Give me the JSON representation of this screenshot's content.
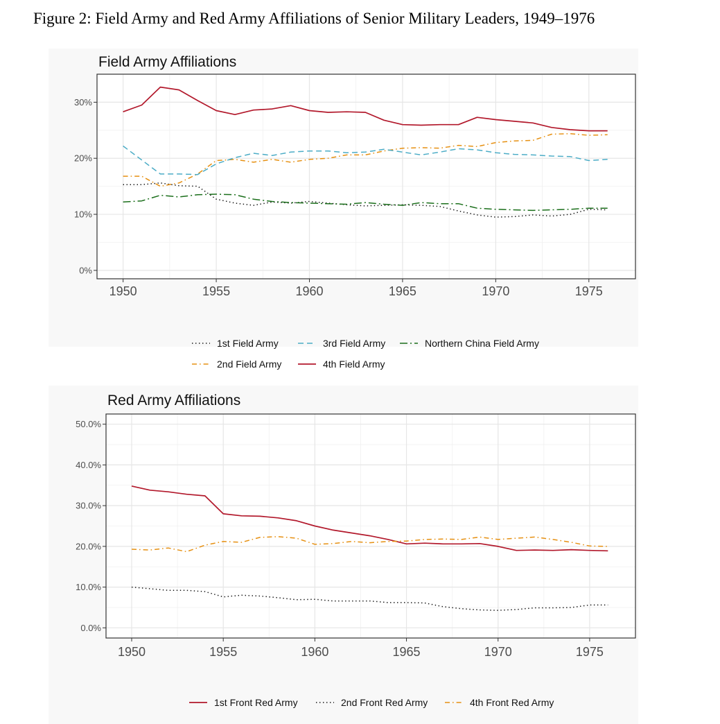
{
  "figure_title": "Figure 2: Field Army and Red Army Affiliations of Senior Military Leaders, 1949–1976",
  "colors": {
    "red": "#b2182b",
    "blue": "#4bacc6",
    "orange": "#e69012",
    "green": "#1a6e1a",
    "black": "#111111"
  },
  "chart_data": [
    {
      "type": "line",
      "title": "Field Army Affiliations",
      "xlabel": "",
      "ylabel": "",
      "x": [
        1950,
        1951,
        1952,
        1953,
        1954,
        1955,
        1956,
        1957,
        1958,
        1959,
        1960,
        1961,
        1962,
        1963,
        1964,
        1965,
        1966,
        1967,
        1968,
        1969,
        1970,
        1971,
        1972,
        1973,
        1974,
        1975,
        1976
      ],
      "xlim": [
        1948.6,
        1977.5
      ],
      "ylim": [
        -1.5,
        35
      ],
      "x_ticks": [
        1950,
        1955,
        1960,
        1965,
        1970,
        1975
      ],
      "x_tick_labels": [
        "1950",
        "1955",
        "1960",
        "1965",
        "1970",
        "1975"
      ],
      "y_ticks": [
        0,
        10,
        20,
        30
      ],
      "y_tick_labels": [
        "0%",
        "10%",
        "20%",
        "30%"
      ],
      "grid": true,
      "legend_position": "bottom",
      "series": [
        {
          "name": "1st Field Army",
          "style": "dotted",
          "color": "#111111",
          "values": [
            15.3,
            15.3,
            15.6,
            15.1,
            15.0,
            12.7,
            12.0,
            11.6,
            12.2,
            12.0,
            12.3,
            12.0,
            11.7,
            11.5,
            11.6,
            11.7,
            11.6,
            11.4,
            10.6,
            9.9,
            9.5,
            9.6,
            9.9,
            9.7,
            10.0,
            10.9,
            10.8
          ]
        },
        {
          "name": "2nd Field Army",
          "style": "dashdot",
          "color": "#e69012",
          "values": [
            16.8,
            16.8,
            15.0,
            15.6,
            17.2,
            19.6,
            19.8,
            19.3,
            19.8,
            19.3,
            19.8,
            20.0,
            20.6,
            20.6,
            21.3,
            21.8,
            21.9,
            21.8,
            22.3,
            22.1,
            22.8,
            23.1,
            23.2,
            24.3,
            24.4,
            24.1,
            24.2
          ]
        },
        {
          "name": "3rd Field Army",
          "style": "dashed",
          "color": "#4bacc6",
          "values": [
            22.2,
            19.7,
            17.2,
            17.2,
            17.1,
            19.0,
            20.1,
            20.9,
            20.5,
            21.1,
            21.3,
            21.3,
            21.0,
            21.1,
            21.6,
            21.1,
            20.6,
            21.1,
            21.7,
            21.5,
            21.0,
            20.7,
            20.6,
            20.4,
            20.3,
            19.6,
            19.8
          ]
        },
        {
          "name": "4th Field Army",
          "style": "solid",
          "color": "#b2182b",
          "values": [
            28.3,
            29.5,
            32.7,
            32.2,
            30.3,
            28.5,
            27.8,
            28.6,
            28.8,
            29.4,
            28.5,
            28.2,
            28.3,
            28.2,
            26.8,
            26.0,
            25.9,
            26.0,
            26.0,
            27.3,
            26.9,
            26.6,
            26.3,
            25.5,
            25.1,
            24.9,
            24.9
          ]
        },
        {
          "name": "Northern China Field Army",
          "style": "longdashdot",
          "color": "#1a6e1a",
          "values": [
            12.2,
            12.4,
            13.4,
            13.1,
            13.5,
            13.6,
            13.5,
            12.7,
            12.3,
            12.1,
            12.0,
            11.9,
            11.8,
            12.1,
            11.8,
            11.6,
            12.1,
            11.9,
            11.9,
            11.1,
            10.9,
            10.8,
            10.7,
            10.8,
            10.9,
            11.1,
            11.1
          ]
        }
      ],
      "legend_rows": [
        [
          "1st Field Army",
          "3rd Field Army",
          "Northern China Field Army"
        ],
        [
          "2nd Field Army",
          "4th Field Army"
        ]
      ]
    },
    {
      "type": "line",
      "title": "Red Army Affiliations",
      "xlabel": "",
      "ylabel": "",
      "x": [
        1950,
        1951,
        1952,
        1953,
        1954,
        1955,
        1956,
        1957,
        1958,
        1959,
        1960,
        1961,
        1962,
        1963,
        1964,
        1965,
        1966,
        1967,
        1968,
        1969,
        1970,
        1971,
        1972,
        1973,
        1974,
        1975,
        1976
      ],
      "xlim": [
        1948.6,
        1977.5
      ],
      "ylim": [
        -2.5,
        52.5
      ],
      "x_ticks": [
        1950,
        1955,
        1960,
        1965,
        1970,
        1975
      ],
      "x_tick_labels": [
        "1950",
        "1955",
        "1960",
        "1965",
        "1970",
        "1975"
      ],
      "y_ticks": [
        0,
        10,
        20,
        30,
        40,
        50
      ],
      "y_tick_labels": [
        "0.0%",
        "10.0%",
        "20.0%",
        "30.0%",
        "40.0%",
        "50.0%"
      ],
      "grid": true,
      "legend_position": "bottom",
      "series": [
        {
          "name": "1st Front Red Army",
          "style": "solid",
          "color": "#b2182b",
          "values": [
            34.8,
            33.8,
            33.4,
            32.8,
            32.4,
            28.0,
            27.5,
            27.4,
            27.0,
            26.3,
            25.0,
            24.0,
            23.3,
            22.6,
            21.7,
            20.6,
            20.8,
            20.6,
            20.6,
            20.7,
            20.0,
            19.0,
            19.1,
            19.0,
            19.2,
            19.0,
            18.9
          ]
        },
        {
          "name": "2nd Front Red Army",
          "style": "dotted",
          "color": "#111111",
          "values": [
            10.0,
            9.6,
            9.2,
            9.2,
            8.9,
            7.6,
            8.0,
            7.8,
            7.4,
            6.9,
            7.0,
            6.6,
            6.6,
            6.6,
            6.2,
            6.2,
            6.1,
            5.2,
            4.7,
            4.4,
            4.3,
            4.5,
            4.9,
            4.9,
            5.0,
            5.6,
            5.6
          ]
        },
        {
          "name": "4th Front Red Army",
          "style": "dashdot",
          "color": "#e69012",
          "values": [
            19.3,
            19.1,
            19.6,
            18.7,
            20.3,
            21.2,
            21.0,
            22.2,
            22.4,
            22.0,
            20.5,
            20.7,
            21.2,
            20.9,
            21.2,
            21.3,
            21.7,
            21.8,
            21.7,
            22.3,
            21.7,
            22.0,
            22.3,
            21.7,
            21.0,
            20.1,
            20.0
          ]
        }
      ],
      "legend_rows": [
        [
          "1st Front Red Army",
          "2nd Front Red Army",
          "4th Front Red Army"
        ]
      ]
    }
  ]
}
